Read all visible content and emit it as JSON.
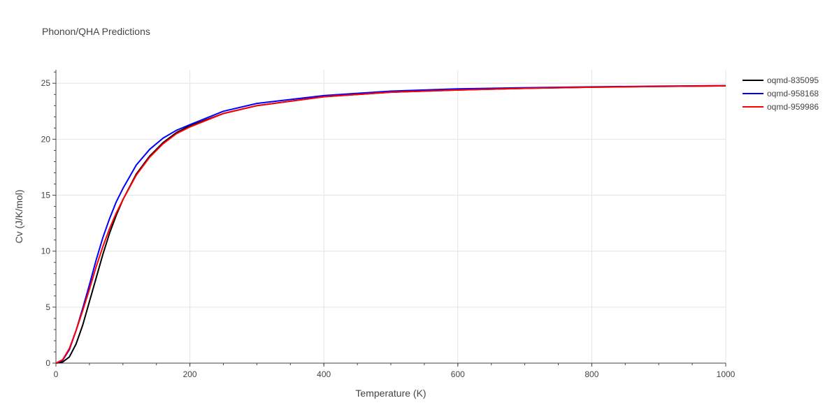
{
  "chart_data": {
    "type": "line",
    "title": "Phonon/QHA Predictions",
    "xlabel": "Temperature (K)",
    "ylabel": "Cv (J/K/mol)",
    "xlim": [
      0,
      1000
    ],
    "ylim": [
      0,
      26.2
    ],
    "xticks": [
      0,
      200,
      400,
      600,
      800,
      1000
    ],
    "yticks": [
      0,
      5,
      10,
      15,
      20,
      25
    ],
    "grid": true,
    "legend_position": "top-right",
    "series": [
      {
        "name": "oqmd-835095",
        "color": "#000000",
        "x": [
          0,
          10,
          20,
          30,
          40,
          50,
          60,
          70,
          80,
          90,
          100,
          120,
          140,
          160,
          180,
          200,
          250,
          300,
          400,
          500,
          600,
          700,
          800,
          900,
          1000
        ],
        "y": [
          0,
          0.1,
          0.55,
          1.7,
          3.4,
          5.5,
          7.6,
          9.7,
          11.6,
          13.2,
          14.6,
          16.9,
          18.5,
          19.7,
          20.6,
          21.2,
          22.3,
          23.0,
          23.8,
          24.2,
          24.4,
          24.55,
          24.65,
          24.72,
          24.77
        ]
      },
      {
        "name": "oqmd-958168",
        "color": "#0000ff",
        "x": [
          0,
          10,
          20,
          30,
          40,
          50,
          60,
          70,
          80,
          90,
          100,
          120,
          140,
          160,
          180,
          200,
          250,
          300,
          400,
          500,
          600,
          700,
          800,
          900,
          1000
        ],
        "y": [
          0,
          0.25,
          1.2,
          2.9,
          4.9,
          7.0,
          9.2,
          11.2,
          12.9,
          14.4,
          15.6,
          17.7,
          19.1,
          20.1,
          20.8,
          21.3,
          22.5,
          23.2,
          23.9,
          24.3,
          24.5,
          24.6,
          24.68,
          24.74,
          24.79
        ]
      },
      {
        "name": "oqmd-959986",
        "color": "#ff0000",
        "x": [
          0,
          10,
          20,
          30,
          40,
          50,
          60,
          70,
          80,
          90,
          100,
          120,
          140,
          160,
          180,
          200,
          250,
          300,
          400,
          500,
          600,
          700,
          800,
          900,
          1000
        ],
        "y": [
          0,
          0.3,
          1.3,
          2.9,
          4.7,
          6.6,
          8.6,
          10.4,
          12.0,
          13.4,
          14.6,
          16.8,
          18.4,
          19.6,
          20.5,
          21.1,
          22.3,
          23.0,
          23.8,
          24.2,
          24.4,
          24.55,
          24.65,
          24.72,
          24.77
        ]
      }
    ]
  }
}
